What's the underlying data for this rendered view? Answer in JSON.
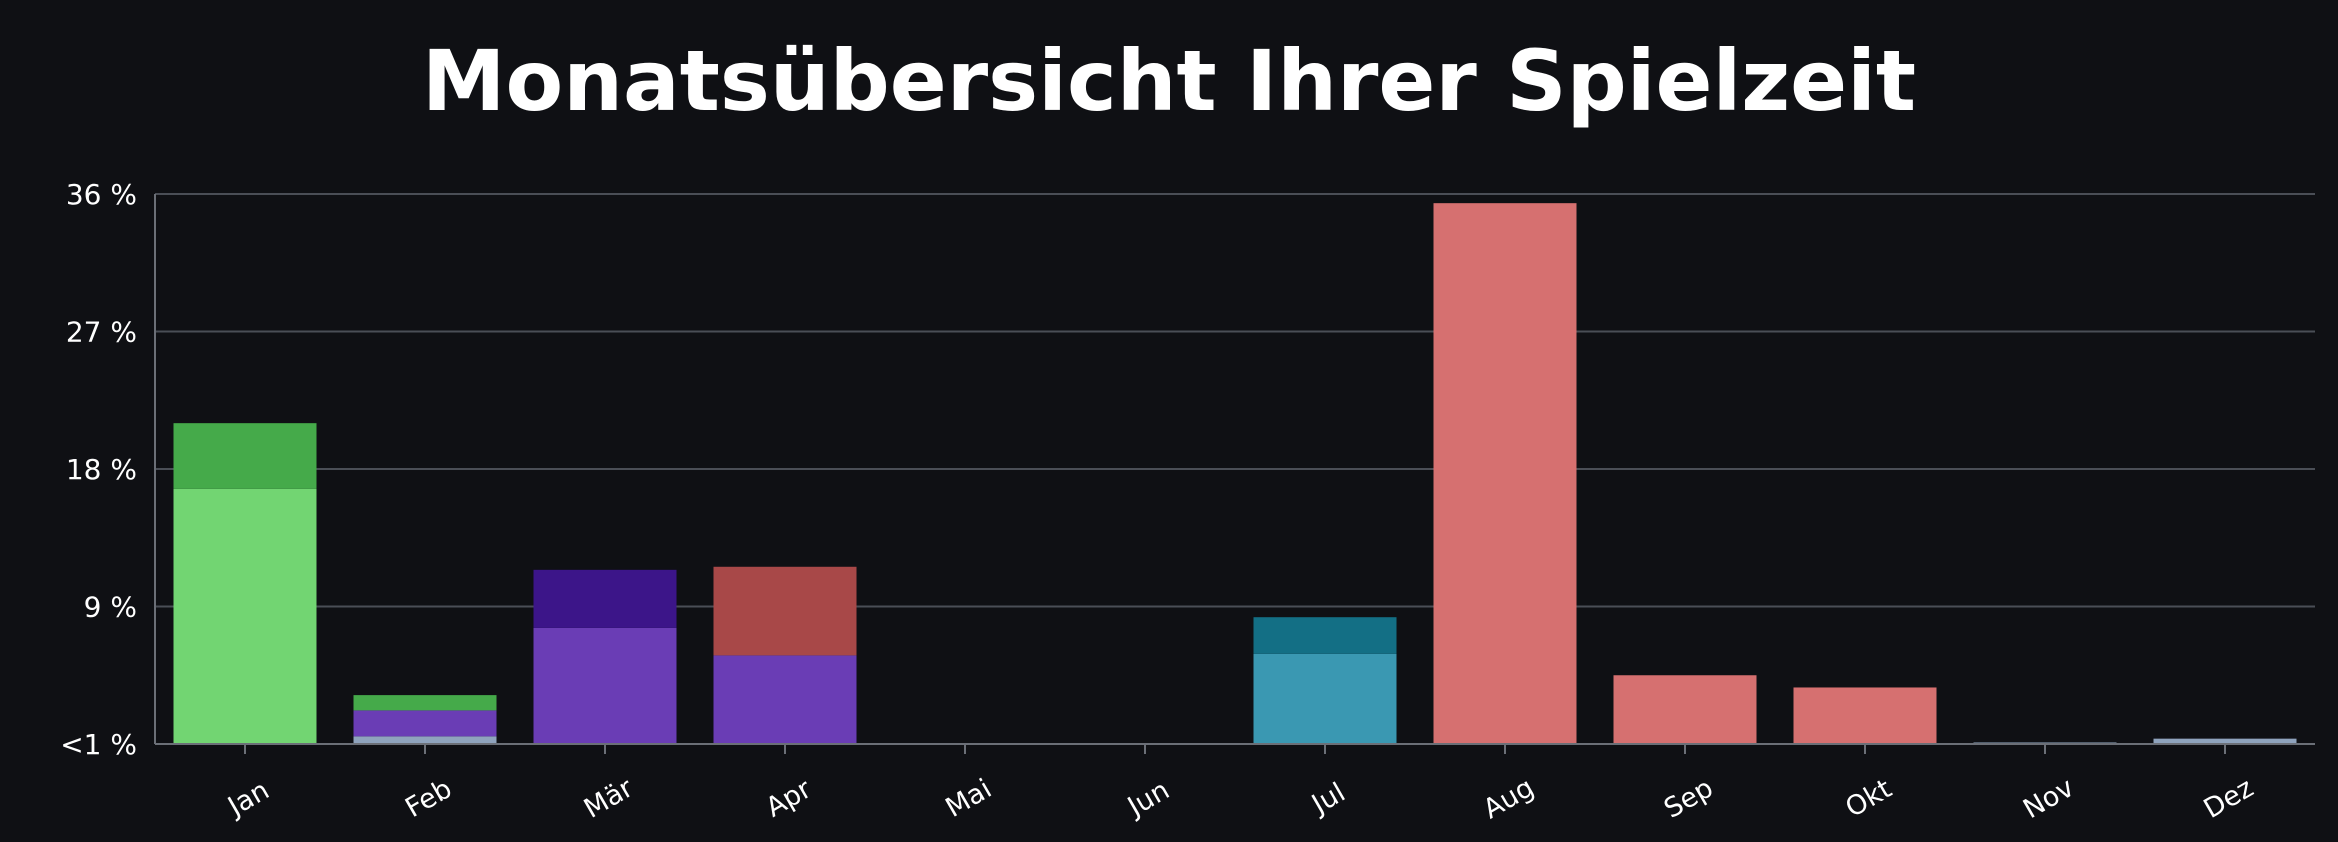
{
  "chart_data": {
    "type": "bar",
    "stacked": true,
    "title": "Monatsübersicht Ihrer Spielzeit",
    "xlabel": "",
    "ylabel": "",
    "ylim": [
      0,
      36
    ],
    "yticks": [
      0,
      9,
      18,
      27,
      36
    ],
    "ytick_labels": [
      "<1 %",
      "9 %",
      "18 %",
      "27 %",
      "36 %"
    ],
    "grid": true,
    "legend": "none",
    "categories": [
      "Jan",
      "Feb",
      "Mär",
      "Apr",
      "Mai",
      "Jun",
      "Jul",
      "Aug",
      "Sep",
      "Okt",
      "Nov",
      "Dez"
    ],
    "bars": [
      {
        "month": "Jan",
        "segments": [
          {
            "value": 16.7,
            "color": "#72d572"
          },
          {
            "value": 4.3,
            "color": "#45aa4a"
          }
        ]
      },
      {
        "month": "Feb",
        "segments": [
          {
            "value": 0.5,
            "color": "#8fa3bd"
          },
          {
            "value": 1.7,
            "color": "#6a3db5"
          },
          {
            "value": 1.0,
            "color": "#45aa4a"
          }
        ]
      },
      {
        "month": "Mär",
        "segments": [
          {
            "value": 7.6,
            "color": "#6a3db5"
          },
          {
            "value": 3.8,
            "color": "#3c1589"
          }
        ]
      },
      {
        "month": "Apr",
        "segments": [
          {
            "value": 5.8,
            "color": "#6a3db5"
          },
          {
            "value": 5.8,
            "color": "#a84848"
          }
        ]
      },
      {
        "month": "Mai",
        "segments": []
      },
      {
        "month": "Jun",
        "segments": []
      },
      {
        "month": "Jul",
        "segments": [
          {
            "value": 5.9,
            "color": "#3a98b2"
          },
          {
            "value": 2.4,
            "color": "#136f85"
          }
        ]
      },
      {
        "month": "Aug",
        "segments": [
          {
            "value": 35.4,
            "color": "#d67070"
          }
        ]
      },
      {
        "month": "Sep",
        "segments": [
          {
            "value": 4.5,
            "color": "#d67070"
          }
        ]
      },
      {
        "month": "Okt",
        "segments": [
          {
            "value": 3.7,
            "color": "#d67070"
          }
        ]
      },
      {
        "month": "Nov",
        "segments": [
          {
            "value": 0.1,
            "color": "#8fa3bd"
          }
        ]
      },
      {
        "month": "Dez",
        "segments": [
          {
            "value": 0.35,
            "color": "#8fa3bd"
          }
        ]
      }
    ]
  }
}
